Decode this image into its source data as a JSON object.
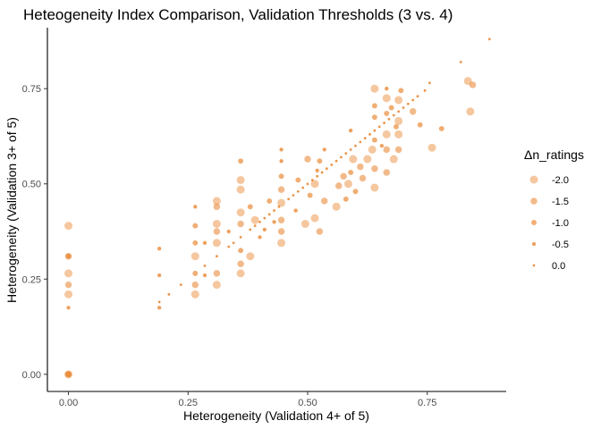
{
  "chart_data": {
    "type": "scatter",
    "title": "Heteogeneity Index Comparison, Validation Thresholds (3 vs. 4)",
    "xlabel": "Heterogeneity (Validation 4+ of 5)",
    "ylabel": "Heterogeneity (Validation 3+ of 5)",
    "xlim": [
      -0.044,
      0.915
    ],
    "ylim": [
      -0.045,
      0.91
    ],
    "x_ticks": [
      0.0,
      0.25,
      0.5,
      0.75
    ],
    "y_ticks": [
      0.0,
      0.25,
      0.5,
      0.75
    ],
    "x_tick_labels": [
      "0.00",
      "0.25",
      "0.50",
      "0.75"
    ],
    "y_tick_labels": [
      "0.00",
      "0.25",
      "0.50",
      "0.75"
    ],
    "grid": false,
    "color": "#E8822A",
    "legend": {
      "title": "Δn_ratings",
      "placement": "right",
      "entries": [
        {
          "label": "-2.0",
          "value": -2.0
        },
        {
          "label": "-1.5",
          "value": -1.5
        },
        {
          "label": "-1.0",
          "value": -1.0
        },
        {
          "label": "-0.5",
          "value": -0.5
        },
        {
          "label": "0.0",
          "value": 0.0
        }
      ]
    },
    "points": [
      {
        "x": 0.0,
        "y": 0.0,
        "d": -2.0
      },
      {
        "x": 0.0,
        "y": 0.0,
        "d": -1.5
      },
      {
        "x": 0.0,
        "y": 0.0,
        "d": -1.0
      },
      {
        "x": 0.0,
        "y": 0.39,
        "d": -2.0
      },
      {
        "x": 0.0,
        "y": 0.31,
        "d": -1.5
      },
      {
        "x": 0.0,
        "y": 0.31,
        "d": -1.0
      },
      {
        "x": 0.0,
        "y": 0.265,
        "d": -2.0
      },
      {
        "x": 0.0,
        "y": 0.235,
        "d": -1.5
      },
      {
        "x": 0.0,
        "y": 0.21,
        "d": -2.0
      },
      {
        "x": 0.0,
        "y": 0.175,
        "d": -0.5
      },
      {
        "x": 0.19,
        "y": 0.33,
        "d": -0.5
      },
      {
        "x": 0.19,
        "y": 0.26,
        "d": -0.5
      },
      {
        "x": 0.19,
        "y": 0.19,
        "d": 0.0
      },
      {
        "x": 0.19,
        "y": 0.175,
        "d": -0.5
      },
      {
        "x": 0.21,
        "y": 0.21,
        "d": 0.0
      },
      {
        "x": 0.235,
        "y": 0.235,
        "d": 0.0
      },
      {
        "x": 0.265,
        "y": 0.265,
        "d": -1.0
      },
      {
        "x": 0.265,
        "y": 0.21,
        "d": -2.0
      },
      {
        "x": 0.265,
        "y": 0.31,
        "d": -2.0
      },
      {
        "x": 0.265,
        "y": 0.345,
        "d": -1.0
      },
      {
        "x": 0.265,
        "y": 0.235,
        "d": -1.5
      },
      {
        "x": 0.265,
        "y": 0.39,
        "d": -1.0
      },
      {
        "x": 0.265,
        "y": 0.44,
        "d": -0.5
      },
      {
        "x": 0.285,
        "y": 0.285,
        "d": 0.0
      },
      {
        "x": 0.285,
        "y": 0.345,
        "d": -0.5
      },
      {
        "x": 0.285,
        "y": 0.26,
        "d": -0.5
      },
      {
        "x": 0.31,
        "y": 0.31,
        "d": 0.0
      },
      {
        "x": 0.31,
        "y": 0.235,
        "d": -2.0
      },
      {
        "x": 0.31,
        "y": 0.265,
        "d": -1.5
      },
      {
        "x": 0.31,
        "y": 0.345,
        "d": -2.0
      },
      {
        "x": 0.31,
        "y": 0.375,
        "d": -1.5
      },
      {
        "x": 0.31,
        "y": 0.44,
        "d": -1.5
      },
      {
        "x": 0.31,
        "y": 0.455,
        "d": -2.0
      },
      {
        "x": 0.31,
        "y": 0.395,
        "d": -2.0
      },
      {
        "x": 0.335,
        "y": 0.335,
        "d": 0.0
      },
      {
        "x": 0.335,
        "y": 0.375,
        "d": -0.5
      },
      {
        "x": 0.345,
        "y": 0.345,
        "d": 0.0
      },
      {
        "x": 0.36,
        "y": 0.36,
        "d": 0.0
      },
      {
        "x": 0.36,
        "y": 0.265,
        "d": -2.0
      },
      {
        "x": 0.36,
        "y": 0.29,
        "d": -1.5
      },
      {
        "x": 0.36,
        "y": 0.325,
        "d": -1.0
      },
      {
        "x": 0.36,
        "y": 0.395,
        "d": -1.5
      },
      {
        "x": 0.36,
        "y": 0.425,
        "d": -2.0
      },
      {
        "x": 0.36,
        "y": 0.485,
        "d": -2.0
      },
      {
        "x": 0.36,
        "y": 0.51,
        "d": -2.0
      },
      {
        "x": 0.36,
        "y": 0.56,
        "d": -1.0
      },
      {
        "x": 0.38,
        "y": 0.38,
        "d": 0.0
      },
      {
        "x": 0.38,
        "y": 0.31,
        "d": -2.0
      },
      {
        "x": 0.38,
        "y": 0.44,
        "d": -1.0
      },
      {
        "x": 0.39,
        "y": 0.39,
        "d": 0.0
      },
      {
        "x": 0.39,
        "y": 0.405,
        "d": -2.0
      },
      {
        "x": 0.4,
        "y": 0.4,
        "d": 0.0
      },
      {
        "x": 0.4,
        "y": 0.36,
        "d": -0.5
      },
      {
        "x": 0.41,
        "y": 0.41,
        "d": 0.0
      },
      {
        "x": 0.41,
        "y": 0.38,
        "d": -0.5
      },
      {
        "x": 0.42,
        "y": 0.42,
        "d": 0.0
      },
      {
        "x": 0.42,
        "y": 0.455,
        "d": -1.0
      },
      {
        "x": 0.43,
        "y": 0.43,
        "d": 0.0
      },
      {
        "x": 0.43,
        "y": 0.4,
        "d": -0.5
      },
      {
        "x": 0.44,
        "y": 0.44,
        "d": 0.0
      },
      {
        "x": 0.445,
        "y": 0.345,
        "d": -2.0
      },
      {
        "x": 0.445,
        "y": 0.375,
        "d": -1.5
      },
      {
        "x": 0.445,
        "y": 0.405,
        "d": -1.5
      },
      {
        "x": 0.445,
        "y": 0.45,
        "d": -2.0
      },
      {
        "x": 0.445,
        "y": 0.485,
        "d": -1.5
      },
      {
        "x": 0.445,
        "y": 0.52,
        "d": -1.0
      },
      {
        "x": 0.445,
        "y": 0.56,
        "d": -0.5
      },
      {
        "x": 0.445,
        "y": 0.59,
        "d": -0.5
      },
      {
        "x": 0.46,
        "y": 0.46,
        "d": 0.0
      },
      {
        "x": 0.47,
        "y": 0.47,
        "d": 0.0
      },
      {
        "x": 0.475,
        "y": 0.43,
        "d": -0.5
      },
      {
        "x": 0.48,
        "y": 0.48,
        "d": 0.0
      },
      {
        "x": 0.48,
        "y": 0.51,
        "d": -1.0
      },
      {
        "x": 0.49,
        "y": 0.49,
        "d": 0.0
      },
      {
        "x": 0.495,
        "y": 0.395,
        "d": -2.0
      },
      {
        "x": 0.5,
        "y": 0.5,
        "d": 0.0
      },
      {
        "x": 0.5,
        "y": 0.565,
        "d": -1.5
      },
      {
        "x": 0.505,
        "y": 0.47,
        "d": -1.0
      },
      {
        "x": 0.51,
        "y": 0.51,
        "d": 0.0
      },
      {
        "x": 0.515,
        "y": 0.41,
        "d": -2.0
      },
      {
        "x": 0.515,
        "y": 0.5,
        "d": -2.0
      },
      {
        "x": 0.52,
        "y": 0.52,
        "d": 0.0
      },
      {
        "x": 0.52,
        "y": 0.535,
        "d": -0.5
      },
      {
        "x": 0.525,
        "y": 0.375,
        "d": -1.5
      },
      {
        "x": 0.525,
        "y": 0.56,
        "d": -1.0
      },
      {
        "x": 0.53,
        "y": 0.53,
        "d": 0.0
      },
      {
        "x": 0.535,
        "y": 0.455,
        "d": -1.5
      },
      {
        "x": 0.535,
        "y": 0.59,
        "d": -0.5
      },
      {
        "x": 0.54,
        "y": 0.54,
        "d": 0.0
      },
      {
        "x": 0.55,
        "y": 0.55,
        "d": 0.0
      },
      {
        "x": 0.56,
        "y": 0.56,
        "d": 0.0
      },
      {
        "x": 0.56,
        "y": 0.44,
        "d": -2.0
      },
      {
        "x": 0.565,
        "y": 0.495,
        "d": -1.5
      },
      {
        "x": 0.57,
        "y": 0.57,
        "d": 0.0
      },
      {
        "x": 0.575,
        "y": 0.52,
        "d": -1.5
      },
      {
        "x": 0.58,
        "y": 0.58,
        "d": 0.0
      },
      {
        "x": 0.58,
        "y": 0.46,
        "d": -1.0
      },
      {
        "x": 0.585,
        "y": 0.5,
        "d": -2.0
      },
      {
        "x": 0.59,
        "y": 0.59,
        "d": 0.0
      },
      {
        "x": 0.59,
        "y": 0.64,
        "d": -0.5
      },
      {
        "x": 0.59,
        "y": 0.53,
        "d": -1.0
      },
      {
        "x": 0.595,
        "y": 0.565,
        "d": -2.0
      },
      {
        "x": 0.6,
        "y": 0.6,
        "d": 0.0
      },
      {
        "x": 0.6,
        "y": 0.48,
        "d": -1.0
      },
      {
        "x": 0.61,
        "y": 0.61,
        "d": 0.0
      },
      {
        "x": 0.61,
        "y": 0.545,
        "d": -1.5
      },
      {
        "x": 0.615,
        "y": 0.515,
        "d": -1.5
      },
      {
        "x": 0.62,
        "y": 0.62,
        "d": 0.0
      },
      {
        "x": 0.625,
        "y": 0.565,
        "d": -2.0
      },
      {
        "x": 0.63,
        "y": 0.63,
        "d": 0.0
      },
      {
        "x": 0.635,
        "y": 0.59,
        "d": -2.0
      },
      {
        "x": 0.64,
        "y": 0.64,
        "d": 0.0
      },
      {
        "x": 0.64,
        "y": 0.49,
        "d": -2.0
      },
      {
        "x": 0.64,
        "y": 0.54,
        "d": -1.5
      },
      {
        "x": 0.64,
        "y": 0.615,
        "d": -1.0
      },
      {
        "x": 0.64,
        "y": 0.675,
        "d": -1.0
      },
      {
        "x": 0.64,
        "y": 0.705,
        "d": -1.0
      },
      {
        "x": 0.64,
        "y": 0.75,
        "d": -2.0
      },
      {
        "x": 0.65,
        "y": 0.65,
        "d": 0.0
      },
      {
        "x": 0.655,
        "y": 0.6,
        "d": -0.5
      },
      {
        "x": 0.66,
        "y": 0.66,
        "d": 0.0
      },
      {
        "x": 0.665,
        "y": 0.63,
        "d": -2.0
      },
      {
        "x": 0.665,
        "y": 0.59,
        "d": -1.5
      },
      {
        "x": 0.665,
        "y": 0.53,
        "d": -1.5
      },
      {
        "x": 0.665,
        "y": 0.685,
        "d": -1.0
      },
      {
        "x": 0.665,
        "y": 0.725,
        "d": -2.0
      },
      {
        "x": 0.665,
        "y": 0.75,
        "d": -0.5
      },
      {
        "x": 0.67,
        "y": 0.67,
        "d": 0.0
      },
      {
        "x": 0.675,
        "y": 0.7,
        "d": -1.0
      },
      {
        "x": 0.68,
        "y": 0.68,
        "d": 0.0
      },
      {
        "x": 0.68,
        "y": 0.565,
        "d": -2.0
      },
      {
        "x": 0.685,
        "y": 0.65,
        "d": -1.0
      },
      {
        "x": 0.69,
        "y": 0.69,
        "d": 0.0
      },
      {
        "x": 0.69,
        "y": 0.59,
        "d": -1.5
      },
      {
        "x": 0.69,
        "y": 0.63,
        "d": -2.0
      },
      {
        "x": 0.69,
        "y": 0.665,
        "d": -2.0
      },
      {
        "x": 0.69,
        "y": 0.72,
        "d": -2.0
      },
      {
        "x": 0.695,
        "y": 0.745,
        "d": -1.0
      },
      {
        "x": 0.7,
        "y": 0.7,
        "d": 0.0
      },
      {
        "x": 0.71,
        "y": 0.71,
        "d": 0.0
      },
      {
        "x": 0.72,
        "y": 0.72,
        "d": 0.0
      },
      {
        "x": 0.72,
        "y": 0.69,
        "d": -1.5
      },
      {
        "x": 0.73,
        "y": 0.73,
        "d": 0.0
      },
      {
        "x": 0.735,
        "y": 0.655,
        "d": -1.0
      },
      {
        "x": 0.745,
        "y": 0.745,
        "d": 0.0
      },
      {
        "x": 0.755,
        "y": 0.765,
        "d": 0.0
      },
      {
        "x": 0.76,
        "y": 0.595,
        "d": -2.0
      },
      {
        "x": 0.78,
        "y": 0.645,
        "d": -1.0
      },
      {
        "x": 0.82,
        "y": 0.82,
        "d": 0.0
      },
      {
        "x": 0.835,
        "y": 0.77,
        "d": -2.0
      },
      {
        "x": 0.84,
        "y": 0.69,
        "d": -2.0
      },
      {
        "x": 0.845,
        "y": 0.76,
        "d": -1.5
      },
      {
        "x": 0.88,
        "y": 0.88,
        "d": 0.0
      }
    ]
  }
}
